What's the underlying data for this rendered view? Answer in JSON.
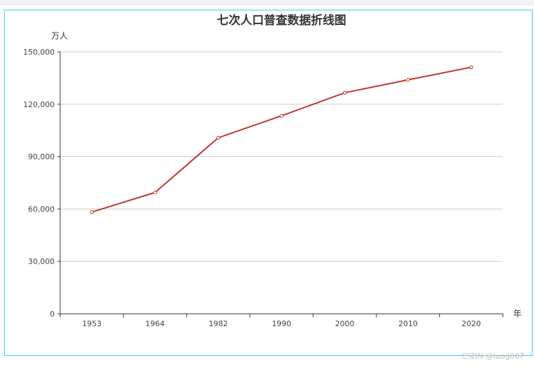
{
  "chart_data": {
    "type": "line",
    "title": "七次人口普查数据折线图",
    "ylabel": "万人",
    "xlabel": "年",
    "categories": [
      "1953",
      "1964",
      "1982",
      "1990",
      "2000",
      "2010",
      "2020"
    ],
    "series": [
      {
        "values": [
          58260,
          69458,
          100818,
          113368,
          126583,
          133972,
          141178
        ]
      }
    ],
    "ylim": [
      0,
      150000
    ],
    "yticks": [
      "0",
      "30,000",
      "60,000",
      "90,000",
      "120,000",
      "150,000"
    ],
    "grid": true,
    "line_color": "#c23531"
  },
  "watermark": "CSDN @luog007"
}
